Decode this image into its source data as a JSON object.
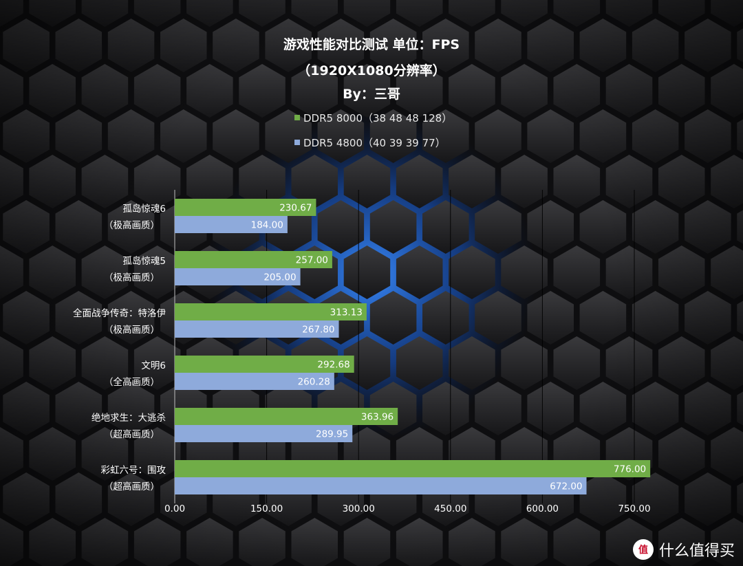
{
  "title_line1": "游戏性能对比测试 单位：FPS",
  "title_line2": "（1920X1080分辨率）",
  "title_line3": "By：三哥",
  "watermark": {
    "text": "什么值得买",
    "icon_text": "值"
  },
  "chart_data": {
    "type": "bar",
    "orientation": "horizontal",
    "categories": [
      [
        "孤岛惊魂6",
        "（极高画质）"
      ],
      [
        "孤岛惊魂5",
        "（极高画质）"
      ],
      [
        "全面战争传奇：特洛伊",
        "（极高画质）"
      ],
      [
        "文明6",
        "（全高画质）"
      ],
      [
        "绝地求生：大逃杀",
        "（超高画质）"
      ],
      [
        "彩虹六号：围攻",
        "（超高画质）"
      ]
    ],
    "series": [
      {
        "name": "DDR5 8000（38 48 48 128）",
        "color": "#70ad47",
        "values": [
          230.67,
          257.0,
          313.13,
          292.68,
          363.96,
          776.0
        ],
        "labels": [
          "230.67",
          "257.00",
          "313.13",
          "292.68",
          "363.96",
          "776.00"
        ]
      },
      {
        "name": "DDR5 4800（40 39 39 77）",
        "color": "#8eaadb",
        "values": [
          184.0,
          205.0,
          267.8,
          260.28,
          289.95,
          672.0
        ],
        "labels": [
          "184.00",
          "205.00",
          "267.80",
          "260.28",
          "289.95",
          "672.00"
        ]
      }
    ],
    "xlim": [
      0,
      750
    ],
    "xticks": [
      "0.00",
      "150.00",
      "300.00",
      "450.00",
      "600.00",
      "750.00"
    ],
    "grid": true,
    "legend_position": "top"
  }
}
